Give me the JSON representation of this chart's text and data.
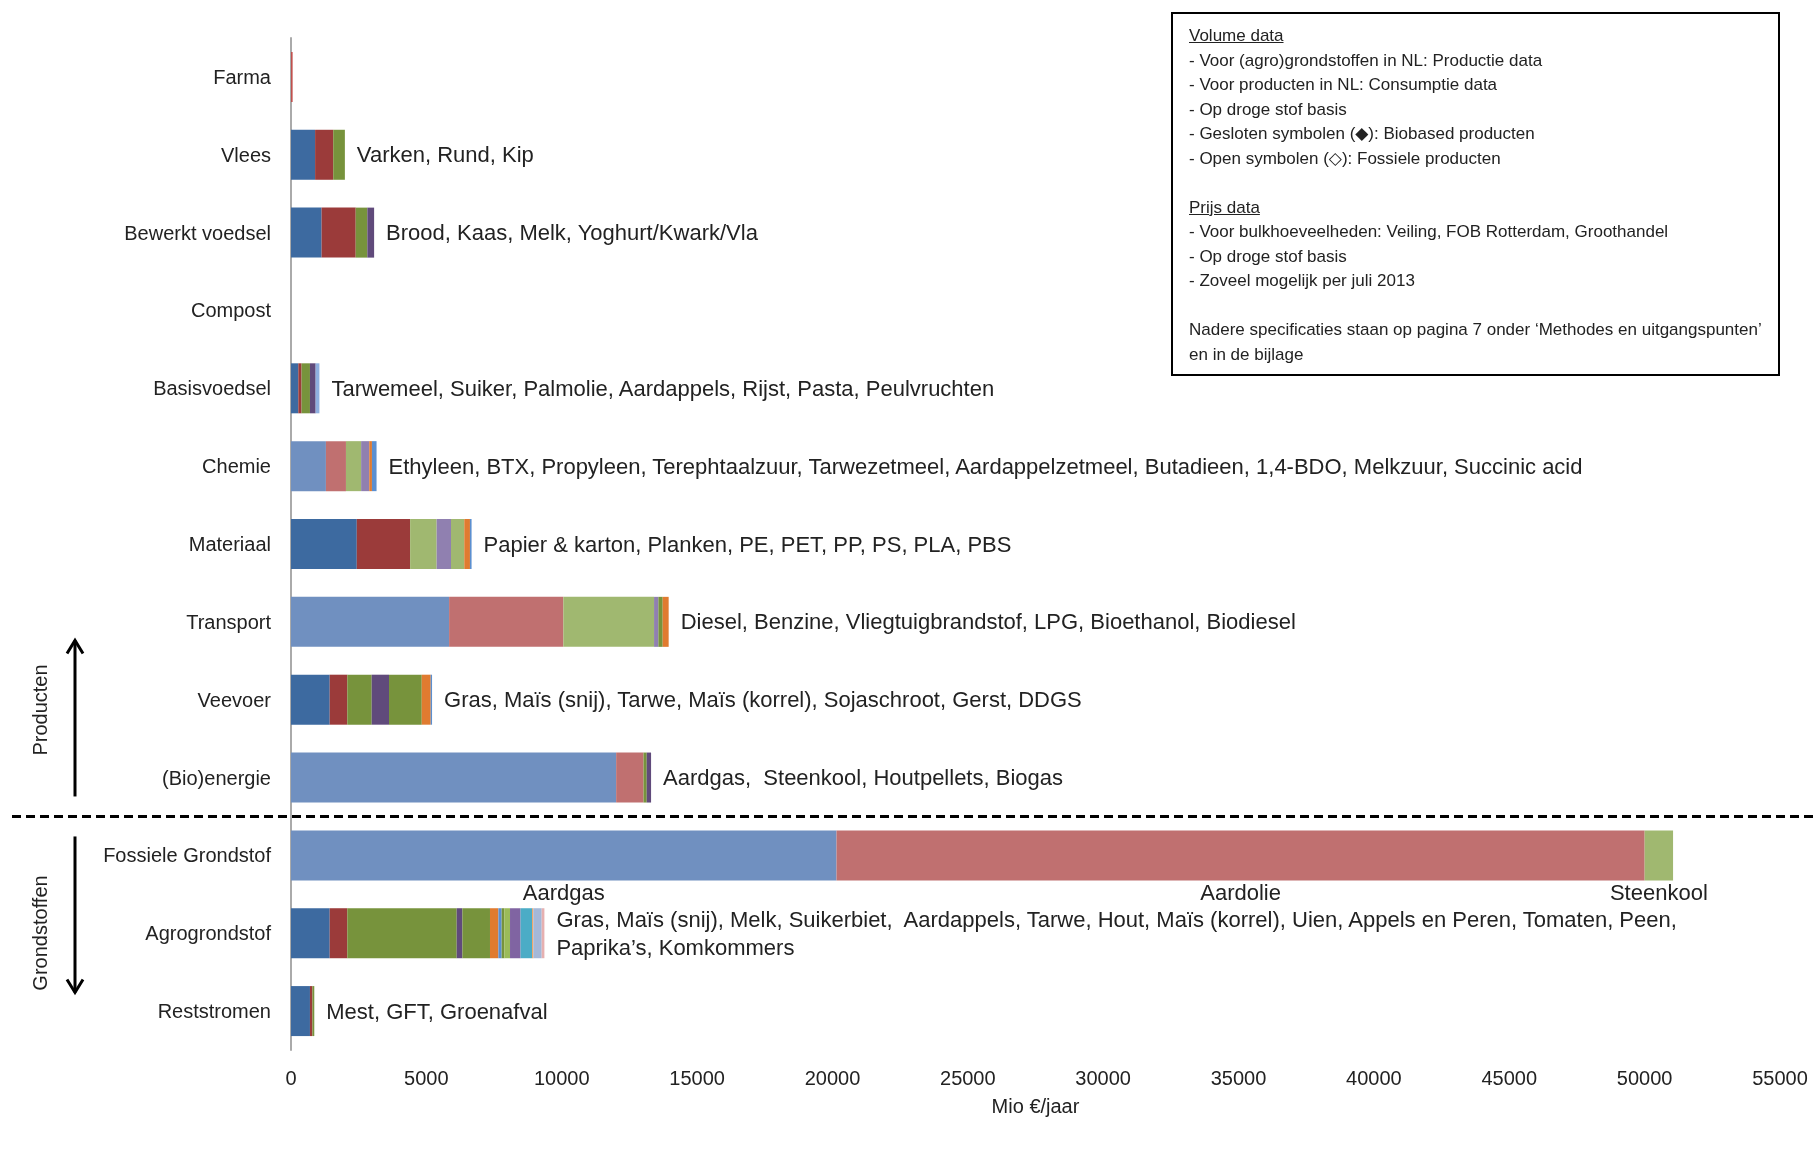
{
  "chart_data": {
    "type": "bar",
    "orientation": "horizontal",
    "stacked": true,
    "xlabel": "Mio €/jaar",
    "categories": [
      "Farma",
      "Vlees",
      "Bewerkt voedsel",
      "Compost",
      "Basisvoedsel",
      "Chemie",
      "Materiaal",
      "Transport",
      "Veevoer",
      "(Bio)energie",
      "Fossiele Grondstof",
      "Agrogrondstof",
      "Reststromen"
    ],
    "xlim": [
      0,
      55000
    ],
    "xticks": [
      0,
      5000,
      10000,
      15000,
      20000,
      25000,
      30000,
      35000,
      40000,
      45000,
      50000,
      55000
    ],
    "grid": false,
    "series": [
      {
        "values": [
          60,
          890,
          1130,
          null,
          270,
          1290,
          2430,
          5840,
          1430,
          12010,
          null,
          1430,
          700
        ],
        "colors": [
          "#c0504d",
          "#3d6aa0",
          "#3d6aa0",
          null,
          "#3d6aa0",
          "#7090c0",
          "#3d6aa0",
          "#7090c0",
          "#3d6aa0",
          "#7090c0",
          null,
          "#3d6aa0",
          "#3d6aa0"
        ]
      },
      {
        "values": [
          null,
          670,
          1260,
          null,
          120,
          740,
          1970,
          4220,
          650,
          1010,
          null,
          650,
          90
        ],
        "colors": [
          null,
          "#9b3b3a",
          "#9b3b3a",
          null,
          "#9b3b3a",
          "#c07070",
          "#9b3b3a",
          "#c07070",
          "#9b3b3a",
          "#c07070",
          null,
          "#9b3b3a",
          "#9b3b3a"
        ]
      },
      {
        "values": [
          null,
          430,
          430,
          null,
          310,
          560,
          980,
          3350,
          900,
          120,
          null,
          4040,
          70
        ],
        "colors": [
          null,
          "#77933c",
          "#77933c",
          null,
          "#77933c",
          "#a0b870",
          "#a0b870",
          "#a0b870",
          "#77933c",
          "#77933c",
          null,
          "#77933c",
          "#77933c"
        ]
      },
      {
        "name": "Aardgas",
        "color": "#7090c0",
        "values": [
          null,
          null,
          null,
          null,
          null,
          null,
          null,
          null,
          null,
          null,
          20150,
          null,
          null
        ]
      },
      {
        "name": "Aardolie",
        "color": "#c07070",
        "values": [
          null,
          null,
          null,
          null,
          null,
          null,
          null,
          null,
          null,
          null,
          29850,
          null,
          null
        ]
      },
      {
        "name": "Steenkool",
        "color": "#a0b870",
        "values": [
          null,
          null,
          null,
          null,
          null,
          null,
          null,
          null,
          null,
          null,
          1050,
          null,
          null
        ]
      },
      {
        "values": [
          null,
          null,
          250,
          null,
          210,
          300,
          530,
          160,
          640,
          160,
          null,
          210,
          null
        ],
        "colors": [
          null,
          null,
          "#604a7b",
          null,
          "#604a7b",
          "#9080b0",
          "#9080b0",
          "#9080b0",
          "#604a7b",
          "#604a7b",
          null,
          "#604a7b",
          null
        ]
      },
      {
        "values": [
          null,
          null,
          null,
          null,
          140,
          100,
          490,
          160,
          1210,
          null,
          null,
          1020,
          null
        ],
        "colors": [
          null,
          null,
          null,
          null,
          "#8fb0e0",
          "#e07b30",
          "#a0b870",
          "#77933c",
          "#77933c",
          null,
          null,
          "#77933c",
          null
        ]
      },
      {
        "values": [
          null,
          null,
          null,
          null,
          null,
          170,
          210,
          220,
          330,
          null,
          null,
          310,
          null
        ],
        "colors": [
          null,
          null,
          null,
          null,
          null,
          "#5b8fd0",
          "#e07b30",
          "#e07b30",
          "#e07b30",
          null,
          null,
          "#e07b30",
          null
        ]
      },
      {
        "values": [
          null,
          null,
          null,
          null,
          null,
          null,
          60,
          null,
          50,
          null,
          null,
          120,
          null
        ],
        "colors": [
          null,
          null,
          null,
          null,
          null,
          null,
          "#5b8fd0",
          null,
          "#5b8fd0",
          null,
          null,
          "#5b8fd0",
          null
        ]
      },
      {
        "values": [
          null,
          null,
          null,
          null,
          null,
          null,
          null,
          null,
          null,
          null,
          null,
          100,
          null
        ],
        "colors": [
          null,
          null,
          null,
          null,
          null,
          null,
          null,
          null,
          null,
          null,
          null,
          "#77933c",
          null
        ]
      },
      {
        "values": [
          null,
          null,
          null,
          null,
          null,
          null,
          null,
          null,
          null,
          null,
          null,
          210,
          null
        ],
        "colors": [
          null,
          null,
          null,
          null,
          null,
          null,
          null,
          null,
          null,
          null,
          null,
          "#9bbb59",
          null
        ]
      },
      {
        "values": [
          null,
          null,
          null,
          null,
          null,
          null,
          null,
          null,
          null,
          null,
          null,
          390,
          null
        ],
        "colors": [
          null,
          null,
          null,
          null,
          null,
          null,
          null,
          null,
          null,
          null,
          null,
          "#8064a2",
          null
        ]
      },
      {
        "values": [
          null,
          null,
          null,
          null,
          null,
          null,
          null,
          null,
          null,
          null,
          null,
          430,
          null
        ],
        "colors": [
          null,
          null,
          null,
          null,
          null,
          null,
          null,
          null,
          null,
          null,
          null,
          "#4bacc6",
          null
        ]
      },
      {
        "values": [
          null,
          null,
          null,
          null,
          null,
          null,
          null,
          null,
          null,
          null,
          null,
          40,
          null
        ],
        "colors": [
          null,
          null,
          null,
          null,
          null,
          null,
          null,
          null,
          null,
          null,
          null,
          "#f79646",
          null
        ]
      },
      {
        "values": [
          null,
          null,
          null,
          null,
          null,
          null,
          null,
          null,
          null,
          null,
          null,
          310,
          null
        ],
        "colors": [
          null,
          null,
          null,
          null,
          null,
          null,
          null,
          null,
          null,
          null,
          null,
          "#a5b8d8",
          null
        ]
      },
      {
        "values": [
          null,
          null,
          null,
          null,
          null,
          null,
          null,
          null,
          null,
          null,
          null,
          100,
          null
        ],
        "colors": [
          null,
          null,
          null,
          null,
          null,
          null,
          null,
          null,
          null,
          null,
          null,
          "#e6b0b0",
          null
        ]
      }
    ],
    "annotations": [
      {
        "text": "Varken, Rund, Kip",
        "x": 1990,
        "y": "Vlees"
      },
      {
        "text": "Brood, Kaas, Melk, Yoghurt/Kwark/Vla",
        "x": 3070,
        "y": "Bewerkt voedsel"
      },
      {
        "text": "Tarwemeel, Suiker, Palmolie, Aardappels, Rijst, Pasta, Peulvruchten",
        "x": 1050,
        "y": "Basisvoedsel"
      },
      {
        "text": "Ethyleen, BTX, Propyleen, Terephtaalzuur, Tarwezetmeel, Aardappelzetmeel, Butadieen, 1,4-BDO, Melkzuur, Succinic acid",
        "x": 3160,
        "y": "Chemie"
      },
      {
        "text": "Papier & karton, Planken, PE, PET, PP, PS, PLA, PBS",
        "x": 6670,
        "y": "Materiaal"
      },
      {
        "text": "Diesel, Benzine, Vliegtuigbrandstof, LPG, Bioethanol, Biodiesel",
        "x": 13950,
        "y": "Transport"
      },
      {
        "text": "Gras, Maïs (snij), Tarwe, Maïs (korrel), Sojaschroot, Gerst, DDGS",
        "x": 5210,
        "y": "Veevoer"
      },
      {
        "text": "Aardgas,  Steenkool, Houtpellets, Biogas",
        "x": 13300,
        "y": "(Bio)energie"
      },
      {
        "text": "Gras, Maïs (snij), Melk, Suikerbiet,  Aardappels, Tarwe, Hout, Maïs (korrel), Uien, Appels en Peren, Tomaten, Peen, Paprika’s, Komkommers",
        "x": 9360,
        "y": "Agrogrondstof"
      },
      {
        "text": "Mest, GFT, Groenafval",
        "x": 860,
        "y": "Reststromen"
      },
      "Producten",
      "Grondstoffen",
      "Volume data\n-   Voor (agro)grondstoffen in NL: Productie data\n-   Voor producten in NL: Consumptie data\n-   Op droge stof basis\n-   Gesloten symbolen (◆): Biobased producten\n-   Open symbolen (◇): Fossiele producten",
      "Prijs data\n-   Voor bulkhoeveelheden: Veiling, FOB Rotterdam, Groothandel\n-   Op droge stof basis\n-   Zoveel mogelijk per juli 2013",
      "Nadere specificaties staan op pagina 7 onder ‘Methodes en uitgangspunten’ en in de bijlage"
    ]
  }
}
